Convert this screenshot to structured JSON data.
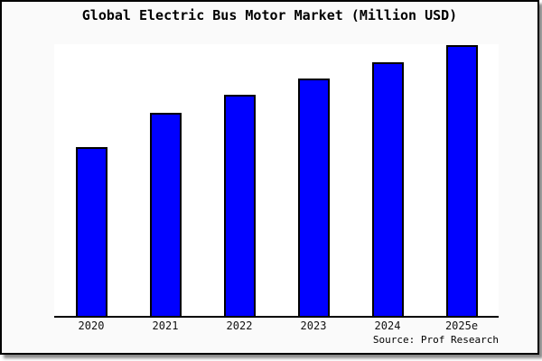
{
  "chart_data": {
    "type": "bar",
    "title": "Global Electric Bus Motor Market (Million USD)",
    "categories": [
      "2020",
      "2021",
      "2022",
      "2023",
      "2024",
      "2025e"
    ],
    "values": [
      62.3,
      75.0,
      81.7,
      87.7,
      93.7,
      100.0
    ],
    "note": "No y-axis, gridlines or value labels are shown in the chart; values are relative bar heights with 2025e = 100",
    "xlabel": "",
    "ylabel": "",
    "legend": "none",
    "grid": false,
    "y_axis_visible": false,
    "bar_color": "#0000ff",
    "bar_border_color": "#000000",
    "background_color": "#fafafa",
    "plot_background_color": "#ffffff",
    "source": "Source: Prof Research"
  }
}
